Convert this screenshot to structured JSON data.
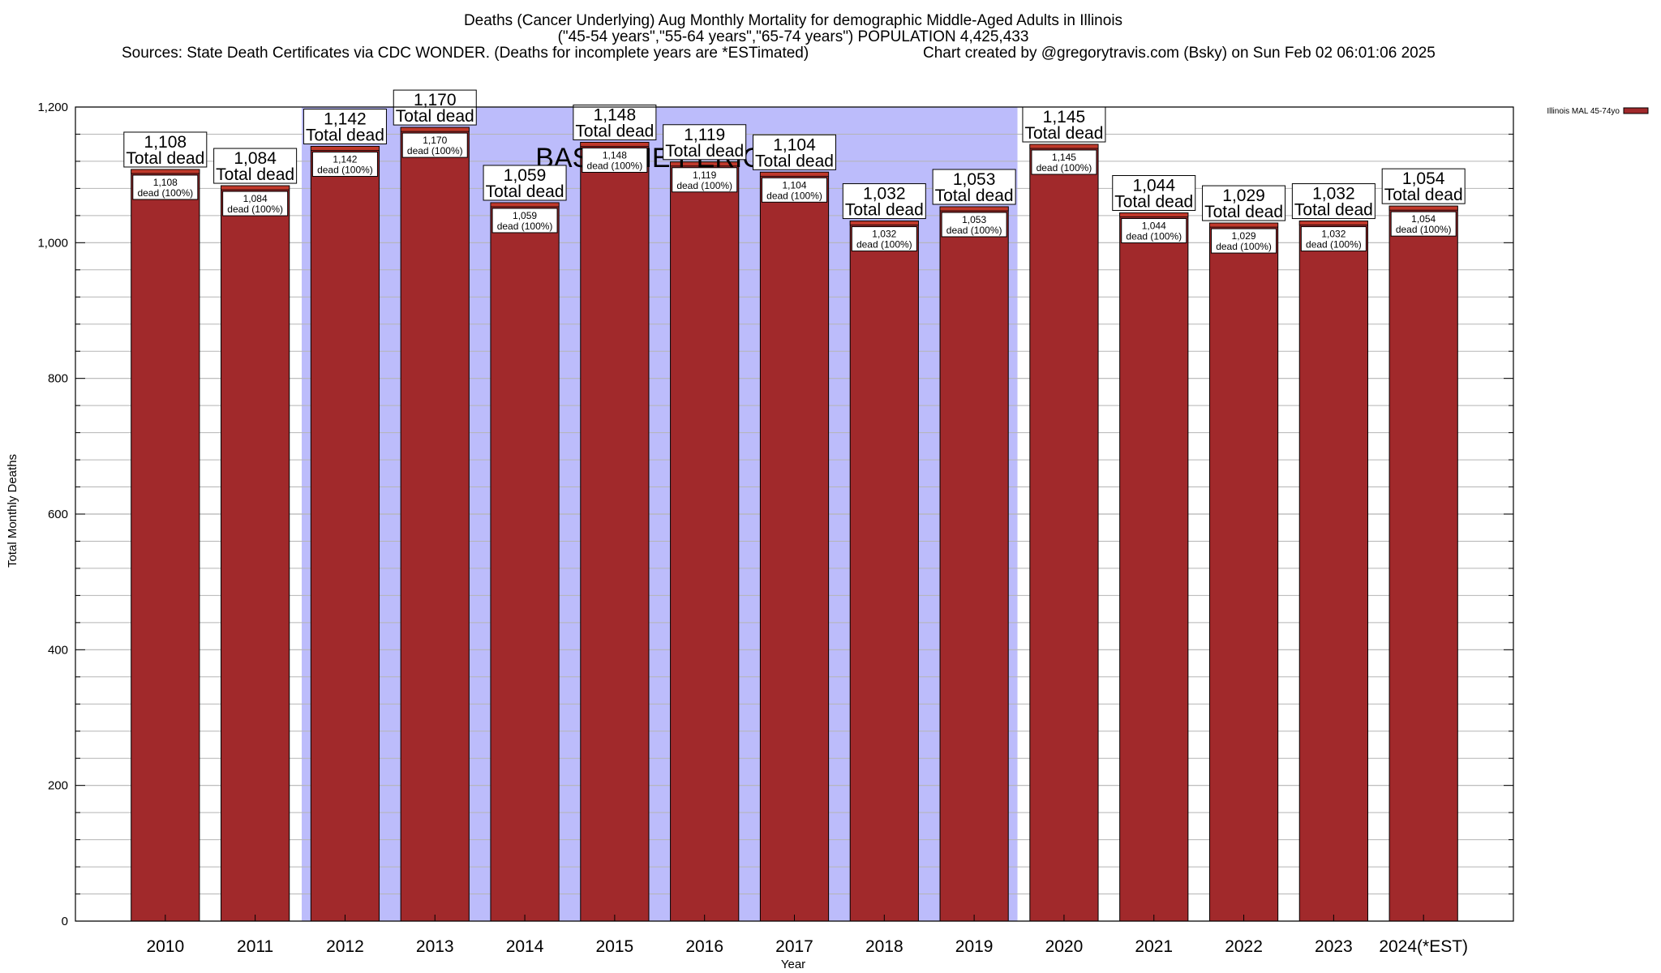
{
  "header": {
    "title_line1": "Deaths (Cancer Underlying) Aug Monthly Mortality for demographic Middle-Aged Adults in Illinois",
    "title_line2": "(\"45-54 years\",\"55-64 years\",\"65-74 years\") POPULATION 4,425,433",
    "sources": "Sources: State Death Certificates via CDC WONDER. (Deaths for incomplete years are *ESTimated)",
    "credit": "Chart created by @gregorytravis.com (Bsky) on Sun Feb 02 06:01:06 2025"
  },
  "chart_data": {
    "type": "bar",
    "categories": [
      "2010",
      "2011",
      "2012",
      "2013",
      "2014",
      "2015",
      "2016",
      "2017",
      "2018",
      "2019",
      "2020",
      "2021",
      "2022",
      "2023",
      "2024(*EST)"
    ],
    "series": [
      {
        "name": "Illinois MAL 45-74yo",
        "values": [
          1108,
          1084,
          1142,
          1170,
          1059,
          1148,
          1119,
          1104,
          1032,
          1053,
          1145,
          1044,
          1029,
          1032,
          1054
        ]
      }
    ],
    "value_labels": [
      "1,108",
      "1,084",
      "1,142",
      "1,170",
      "1,059",
      "1,148",
      "1,119",
      "1,104",
      "1,032",
      "1,053",
      "1,145",
      "1,044",
      "1,029",
      "1,032",
      "1,054"
    ],
    "total_label": "Total dead",
    "inner_label": "dead (100%)",
    "baseline_label": "BASELINE PERIOD",
    "baseline_range": [
      "2012",
      "2019"
    ],
    "xlabel": "Year",
    "ylabel": "Total Monthly Deaths",
    "ylim": [
      0,
      1200
    ],
    "yticks": [
      0,
      200,
      400,
      600,
      800,
      1000,
      1200
    ],
    "ytick_labels": [
      "0",
      "200",
      "400",
      "600",
      "800",
      "1,000",
      "1,200"
    ],
    "grid": true,
    "legend_position": "top-right outside plot",
    "colors": {
      "bar": "#a1292b",
      "bar_cap": "#c0392b",
      "baseline": "#bcbcfb",
      "grid": "#b5b5b5"
    }
  }
}
